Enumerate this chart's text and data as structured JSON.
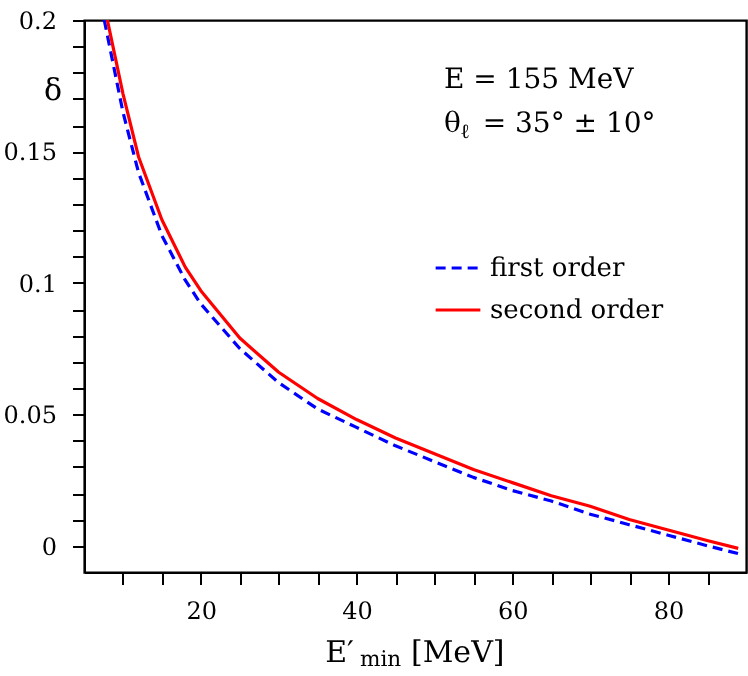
{
  "chart_data": {
    "type": "line",
    "xlabel": "E′$_{min}$ [MeV]",
    "ylabel": "δ",
    "annotations": [
      "E = 155 MeV",
      "θ$_{ℓ}$ = 35° ± 10°"
    ],
    "xlim": [
      5,
      90
    ],
    "ylim": [
      -0.01,
      0.2
    ],
    "xticks": [
      {
        "value": 10,
        "label": null
      },
      {
        "value": 15,
        "label": null
      },
      20,
      {
        "value": 25,
        "label": null
      },
      {
        "value": 30,
        "label": null
      },
      {
        "value": 35,
        "label": null
      },
      40,
      {
        "value": 45,
        "label": null
      },
      {
        "value": 50,
        "label": null
      },
      {
        "value": 55,
        "label": null
      },
      60,
      {
        "value": 65,
        "label": null
      },
      {
        "value": 70,
        "label": null
      },
      {
        "value": 75,
        "label": null
      },
      80,
      {
        "value": 85,
        "label": null
      }
    ],
    "yticks": [
      0,
      {
        "value": 0.01,
        "label": null
      },
      {
        "value": 0.02,
        "label": null
      },
      {
        "value": 0.03,
        "label": null
      },
      {
        "value": 0.04,
        "label": null
      },
      0.05,
      {
        "value": 0.06,
        "label": null
      },
      {
        "value": 0.07,
        "label": null
      },
      {
        "value": 0.08,
        "label": null
      },
      {
        "value": 0.09,
        "label": null
      },
      0.1,
      {
        "value": 0.11,
        "label": null
      },
      {
        "value": 0.12,
        "label": null
      },
      {
        "value": 0.13,
        "label": null
      },
      {
        "value": 0.14,
        "label": null
      },
      0.15,
      {
        "value": 0.16,
        "label": null
      },
      {
        "value": 0.17,
        "label": null
      },
      {
        "value": 0.18,
        "label": null
      },
      {
        "value": 0.19,
        "label": null
      },
      0.2
    ],
    "grid": false,
    "legend": "right",
    "series": [
      {
        "name": "first order",
        "color": "#0000ff",
        "line_style": "dashed",
        "x": [
          7.6,
          10,
          12,
          15,
          18,
          20,
          25,
          30,
          35,
          40,
          45,
          50,
          55,
          60,
          65,
          70,
          75,
          80,
          85,
          89
        ],
        "values": [
          0.2,
          0.165,
          0.142,
          0.118,
          0.101,
          0.092,
          0.075,
          0.062,
          0.052,
          0.045,
          0.038,
          0.032,
          0.026,
          0.021,
          0.017,
          0.012,
          0.008,
          0.004,
          0.0,
          -0.003
        ]
      },
      {
        "name": "second order",
        "color": "#ff0000",
        "line_style": "solid",
        "x": [
          8,
          10,
          12,
          15,
          18,
          20,
          25,
          30,
          35,
          40,
          45,
          50,
          55,
          60,
          65,
          70,
          75,
          80,
          85,
          89
        ],
        "values": [
          0.2,
          0.172,
          0.148,
          0.124,
          0.106,
          0.097,
          0.079,
          0.066,
          0.056,
          0.048,
          0.041,
          0.035,
          0.029,
          0.024,
          0.019,
          0.015,
          0.01,
          0.006,
          0.002,
          -0.001
        ]
      }
    ]
  }
}
